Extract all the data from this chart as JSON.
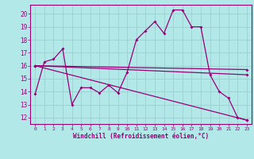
{
  "xlabel": "Windchill (Refroidissement éolien,°C)",
  "bg_color": "#b2e8e8",
  "line_color": "#990077",
  "grid_color": "#99cccc",
  "xlim": [
    -0.5,
    23.5
  ],
  "ylim": [
    11.5,
    20.7
  ],
  "yticks": [
    12,
    13,
    14,
    15,
    16,
    17,
    18,
    19,
    20
  ],
  "xticks": [
    0,
    1,
    2,
    3,
    4,
    5,
    6,
    7,
    8,
    9,
    10,
    11,
    12,
    13,
    14,
    15,
    16,
    17,
    18,
    19,
    20,
    21,
    22,
    23
  ],
  "lines": [
    {
      "x": [
        0,
        1,
        2,
        3,
        4,
        5,
        6,
        7,
        8,
        9,
        10,
        11,
        12,
        13,
        14,
        15,
        16,
        17,
        18,
        19,
        20,
        21,
        22,
        23
      ],
      "y": [
        13.8,
        16.3,
        16.5,
        17.3,
        13.0,
        14.3,
        14.3,
        13.9,
        14.5,
        13.9,
        15.5,
        18.0,
        18.7,
        19.4,
        18.5,
        20.3,
        20.3,
        19.0,
        19.0,
        15.3,
        14.0,
        13.5,
        12.0,
        11.8
      ]
    },
    {
      "x": [
        0,
        23
      ],
      "y": [
        16.0,
        15.3
      ]
    },
    {
      "x": [
        0,
        23
      ],
      "y": [
        16.0,
        15.7
      ]
    },
    {
      "x": [
        0,
        23
      ],
      "y": [
        16.0,
        11.8
      ]
    }
  ]
}
